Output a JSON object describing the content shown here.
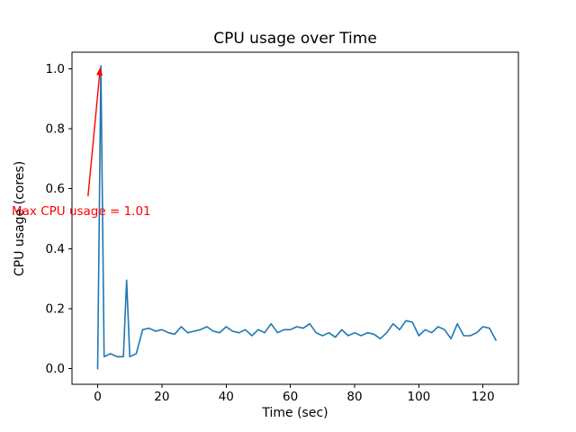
{
  "chart_data": {
    "type": "line",
    "title": "CPU usage over Time",
    "xlabel": "Time (sec)",
    "ylabel": "CPU usage (cores)",
    "xlim": [
      -8,
      131
    ],
    "ylim": [
      -0.052,
      1.055
    ],
    "xticks": [
      0,
      20,
      40,
      60,
      80,
      100,
      120
    ],
    "yticks": [
      0.0,
      0.2,
      0.4,
      0.6,
      0.8,
      1.0
    ],
    "grid": false,
    "legend": null,
    "line_color": "#1f77b4",
    "x": [
      0,
      1,
      2,
      4,
      6,
      8,
      9,
      10,
      12,
      14,
      16,
      18,
      20,
      22,
      24,
      26,
      28,
      30,
      32,
      34,
      36,
      38,
      40,
      42,
      44,
      46,
      48,
      50,
      52,
      54,
      56,
      58,
      60,
      62,
      64,
      66,
      68,
      70,
      72,
      74,
      76,
      78,
      80,
      82,
      84,
      86,
      88,
      90,
      92,
      94,
      96,
      98,
      100,
      102,
      104,
      106,
      108,
      110,
      112,
      114,
      116,
      118,
      120,
      122,
      124
    ],
    "y": [
      0.0,
      1.01,
      0.04,
      0.05,
      0.04,
      0.04,
      0.295,
      0.04,
      0.05,
      0.13,
      0.135,
      0.125,
      0.13,
      0.12,
      0.115,
      0.14,
      0.12,
      0.125,
      0.13,
      0.14,
      0.125,
      0.12,
      0.14,
      0.125,
      0.12,
      0.13,
      0.11,
      0.13,
      0.12,
      0.15,
      0.12,
      0.13,
      0.13,
      0.14,
      0.135,
      0.15,
      0.12,
      0.11,
      0.12,
      0.105,
      0.13,
      0.11,
      0.12,
      0.11,
      0.12,
      0.115,
      0.1,
      0.12,
      0.15,
      0.13,
      0.16,
      0.155,
      0.11,
      0.13,
      0.12,
      0.14,
      0.13,
      0.1,
      0.15,
      0.11,
      0.11,
      0.12,
      0.14,
      0.135,
      0.095
    ],
    "annotation": {
      "text": "Max CPU usage = 1.01",
      "color": "#ff0000",
      "arrow_from_xy": [
        -3,
        0.575
      ],
      "arrow_to_xy": [
        0.8,
        1.005
      ]
    }
  }
}
